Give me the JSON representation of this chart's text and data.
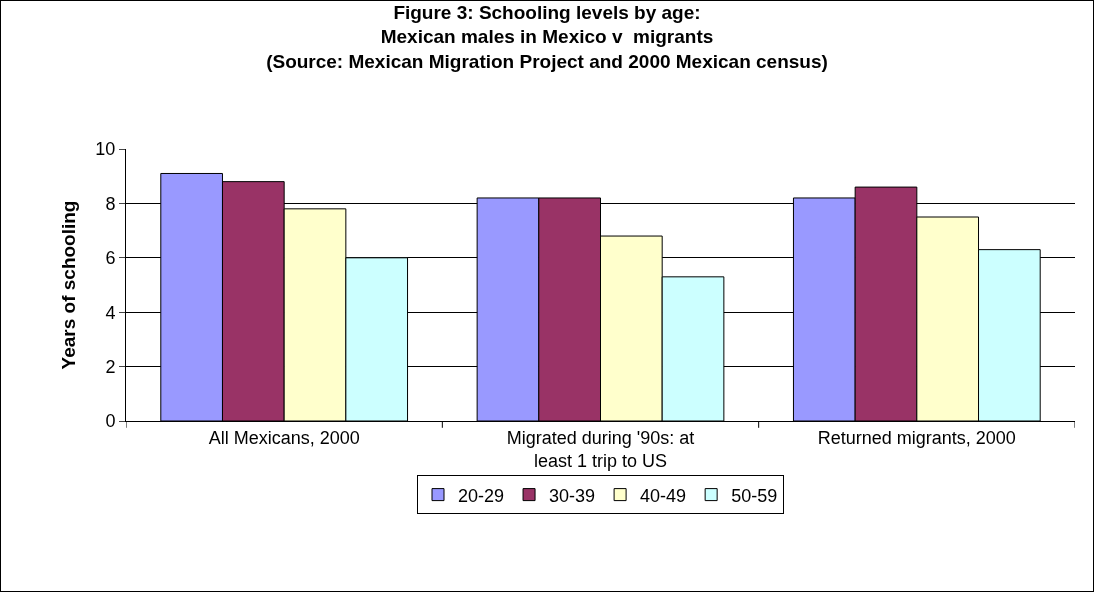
{
  "chart_data": {
    "type": "bar",
    "title": "Figure 3: Schooling levels by age:\nMexican males in Mexico v  migrants\n(Source: Mexican Migration Project and 2000 Mexican census)",
    "ylabel": "Years of schooling",
    "categories": [
      "All Mexicans, 2000",
      "Migrated during '90s: at least 1 trip to US",
      "Returned migrants, 2000"
    ],
    "series": [
      {
        "name": "20-29",
        "color": "#9999ff",
        "values": [
          9.1,
          8.2,
          8.2
        ]
      },
      {
        "name": "30-39",
        "color": "#993366",
        "values": [
          8.8,
          8.2,
          8.6
        ]
      },
      {
        "name": "40-49",
        "color": "#ffffcc",
        "values": [
          7.8,
          6.8,
          7.5
        ]
      },
      {
        "name": "50-59",
        "color": "#ccffff",
        "values": [
          6.0,
          5.3,
          6.3
        ]
      }
    ],
    "ylim": [
      0,
      10
    ],
    "yticks": [
      0,
      2,
      4,
      6,
      8,
      10
    ],
    "grid": "y",
    "legend": "bottom"
  }
}
